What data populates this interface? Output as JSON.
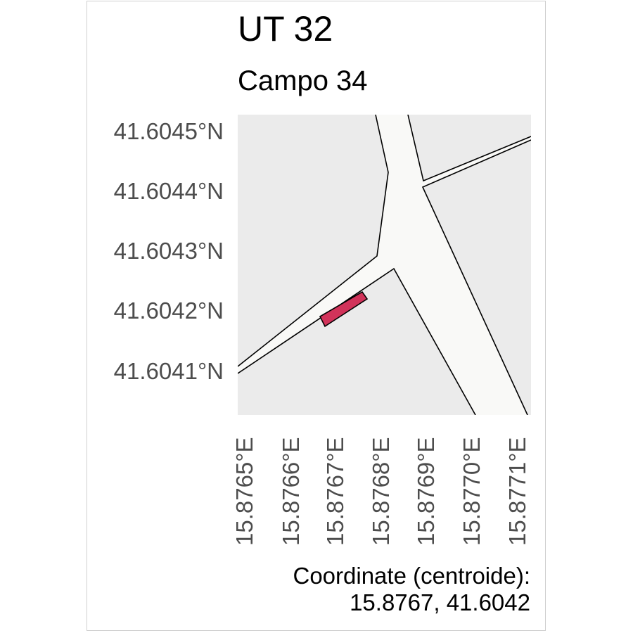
{
  "title": "UT 32",
  "subtitle": "Campo 34",
  "y_ticks": [
    "41.6045°N",
    "41.6044°N",
    "41.6043°N",
    "41.6042°N",
    "41.6041°N"
  ],
  "x_ticks": [
    "15.8765°E",
    "15.8766°E",
    "15.8767°E",
    "15.8768°E",
    "15.8769°E",
    "15.8770°E",
    "15.8771°E"
  ],
  "caption": {
    "line1": "Coordinate (centroide):",
    "line2": "15.8767, 41.6042"
  },
  "colors": {
    "panel_background": "#ebebeb",
    "road_fill": "#f9f9f7",
    "parcel_fill": "#d1335a",
    "outline": "#000000",
    "tick_label": "#4d4d4d"
  },
  "chart_data": {
    "type": "map",
    "xlim": [
      15.87647,
      15.87712
    ],
    "ylim": [
      41.60403,
      41.60455
    ],
    "roads": [
      [
        [
          15.8765,
          41.60455
        ],
        [
          15.87658,
          41.60446
        ],
        [
          15.87658,
          41.60443
        ],
        [
          15.87657,
          41.60432
        ],
        [
          15.87635,
          41.60416
        ],
        [
          15.87633,
          41.60411
        ],
        [
          15.87649,
          41.60422
        ]
      ],
      [
        [
          15.87664,
          41.60455
        ],
        [
          15.87658,
          41.60446
        ]
      ],
      [
        [
          15.87687,
          41.60445
        ],
        [
          15.87712,
          41.60455
        ]
      ],
      [
        [
          15.87658,
          41.60443
        ],
        [
          15.87687,
          41.60445
        ]
      ]
    ],
    "road_corridor": [
      [
        15.87658,
        41.60455
      ],
      [
        15.8767,
        41.60455
      ],
      [
        15.87675,
        41.60444
      ],
      [
        15.87712,
        41.60451
      ],
      [
        15.87712,
        41.60453
      ],
      [
        15.87676,
        41.60444
      ],
      [
        15.87726,
        41.60387
      ],
      [
        15.87679,
        41.60387
      ],
      [
        15.87646,
        41.60428
      ],
      [
        15.8762,
        41.60413
      ],
      [
        15.8762,
        41.6041
      ],
      [
        15.87647,
        41.60426
      ],
      [
        15.8766,
        41.60444
      ],
      [
        15.87658,
        41.60455
      ]
    ],
    "parcel_centroid": [
      15.8767,
      41.6042
    ],
    "parcel": [
      [
        15.87673,
        41.60418
      ],
      [
        15.87683,
        41.60426
      ],
      [
        15.87684,
        41.60424
      ],
      [
        15.87674,
        41.60416
      ]
    ]
  }
}
